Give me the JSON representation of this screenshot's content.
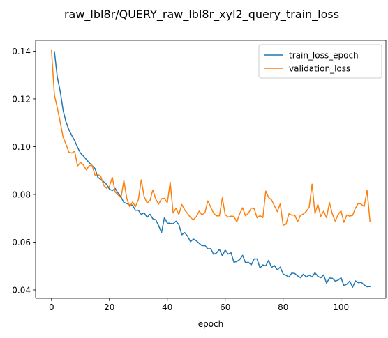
{
  "chart_data": {
    "type": "line",
    "title": "raw_lbl8r/QUERY_raw_lbl8r_xyl2_query_train_loss",
    "xlabel": "epoch",
    "ylabel": "",
    "xlim": [
      -5.5,
      115.5
    ],
    "ylim": [
      0.0365,
      0.1445
    ],
    "xticks": [
      0,
      20,
      40,
      60,
      80,
      100
    ],
    "xtick_labels": [
      "0",
      "20",
      "40",
      "60",
      "80",
      "100"
    ],
    "yticks": [
      0.04,
      0.06,
      0.08,
      0.1,
      0.12,
      0.14
    ],
    "ytick_labels": [
      "0.04",
      "0.06",
      "0.08",
      "0.10",
      "0.12",
      "0.14"
    ],
    "grid": false,
    "legend_position": "top-right",
    "series": [
      {
        "name": "train_loss_epoch",
        "color": "#1f77b4",
        "x_start": 1,
        "values": [
          0.1398,
          0.1291,
          0.1232,
          0.1153,
          0.1104,
          0.1071,
          0.1047,
          0.1025,
          0.0997,
          0.0973,
          0.0961,
          0.0947,
          0.0933,
          0.0921,
          0.0909,
          0.0872,
          0.0862,
          0.0853,
          0.0842,
          0.0822,
          0.0816,
          0.0825,
          0.0805,
          0.0789,
          0.0766,
          0.0762,
          0.0756,
          0.0755,
          0.0733,
          0.0734,
          0.0716,
          0.0723,
          0.0704,
          0.0717,
          0.0698,
          0.0694,
          0.0669,
          0.064,
          0.0703,
          0.068,
          0.0679,
          0.0677,
          0.0688,
          0.0673,
          0.0631,
          0.064,
          0.0625,
          0.0602,
          0.0613,
          0.0606,
          0.0595,
          0.0585,
          0.0586,
          0.0572,
          0.0573,
          0.0549,
          0.0555,
          0.057,
          0.0543,
          0.0567,
          0.055,
          0.0556,
          0.0516,
          0.0519,
          0.0527,
          0.0545,
          0.0514,
          0.0516,
          0.0505,
          0.053,
          0.053,
          0.0492,
          0.0505,
          0.0501,
          0.0524,
          0.0494,
          0.0502,
          0.0484,
          0.0496,
          0.0467,
          0.0461,
          0.0454,
          0.0471,
          0.0469,
          0.0459,
          0.0451,
          0.0466,
          0.0454,
          0.0462,
          0.0454,
          0.0472,
          0.0457,
          0.0451,
          0.0463,
          0.0428,
          0.045,
          0.0449,
          0.0437,
          0.0441,
          0.0451,
          0.0418,
          0.0424,
          0.0437,
          0.0411,
          0.0438,
          0.043,
          0.0432,
          0.0421,
          0.0413,
          0.0414
        ]
      },
      {
        "name": "validation_loss",
        "color": "#ff7f0e",
        "x_start": 0,
        "values": [
          0.1402,
          0.1215,
          0.1163,
          0.1103,
          0.104,
          0.101,
          0.0977,
          0.0973,
          0.0981,
          0.0919,
          0.0934,
          0.0924,
          0.0903,
          0.092,
          0.0922,
          0.0881,
          0.0884,
          0.0876,
          0.0838,
          0.0826,
          0.0834,
          0.0871,
          0.081,
          0.0798,
          0.0786,
          0.0858,
          0.0783,
          0.0749,
          0.0768,
          0.0749,
          0.0778,
          0.0861,
          0.0791,
          0.0764,
          0.0774,
          0.0819,
          0.0781,
          0.0759,
          0.0782,
          0.0784,
          0.0765,
          0.0851,
          0.0722,
          0.0741,
          0.0716,
          0.0758,
          0.0735,
          0.072,
          0.0703,
          0.0694,
          0.0707,
          0.073,
          0.0714,
          0.0724,
          0.0773,
          0.0747,
          0.0721,
          0.071,
          0.071,
          0.0786,
          0.0715,
          0.0705,
          0.0709,
          0.0708,
          0.0685,
          0.0719,
          0.0744,
          0.071,
          0.0721,
          0.0743,
          0.074,
          0.0702,
          0.0711,
          0.0703,
          0.0814,
          0.0787,
          0.0777,
          0.0752,
          0.0728,
          0.0761,
          0.0671,
          0.0675,
          0.0719,
          0.0713,
          0.0714,
          0.0686,
          0.0712,
          0.0718,
          0.0729,
          0.0746,
          0.0843,
          0.072,
          0.0758,
          0.0708,
          0.073,
          0.0702,
          0.0766,
          0.0718,
          0.0688,
          0.0716,
          0.0731,
          0.0683,
          0.0714,
          0.0709,
          0.0712,
          0.0743,
          0.0763,
          0.0759,
          0.0749,
          0.0817,
          0.0688
        ]
      }
    ]
  }
}
